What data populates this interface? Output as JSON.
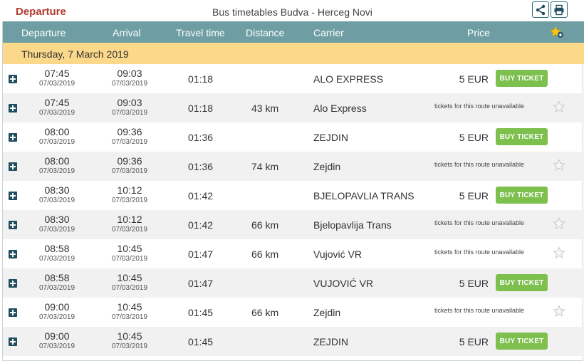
{
  "header": {
    "left_title": "Departure",
    "center_title": "Bus timetables Budva - Herceg Novi"
  },
  "columns": {
    "departure": "Departure",
    "arrival": "Arrival",
    "travel_time": "Travel time",
    "distance": "Distance",
    "carrier": "Carrier",
    "price": "Price"
  },
  "date_label": "Thursday, 7 March 2019",
  "buy_label": "BUY TICKET",
  "unavailable_label": "tickets for this route unavailable",
  "colors": {
    "header_bg": "#6e9ea3",
    "date_bg": "#fbd88a",
    "buy_bg": "#7dc04e",
    "title_red": "#b03a2e"
  },
  "rows": [
    {
      "dep": "07:45",
      "dep_date": "07/03/2019",
      "arr": "09:03",
      "arr_date": "07/03/2019",
      "travel": "01:18",
      "distance": "",
      "carrier": "ALO EXPRESS",
      "price": "5 EUR",
      "bookable": true
    },
    {
      "dep": "07:45",
      "dep_date": "07/03/2019",
      "arr": "09:03",
      "arr_date": "07/03/2019",
      "travel": "01:18",
      "distance": "43 km",
      "carrier": "Alo Express",
      "price": "",
      "bookable": false
    },
    {
      "dep": "08:00",
      "dep_date": "07/03/2019",
      "arr": "09:36",
      "arr_date": "07/03/2019",
      "travel": "01:36",
      "distance": "",
      "carrier": "ZEJDIN",
      "price": "5 EUR",
      "bookable": true
    },
    {
      "dep": "08:00",
      "dep_date": "07/03/2019",
      "arr": "09:36",
      "arr_date": "07/03/2019",
      "travel": "01:36",
      "distance": "74 km",
      "carrier": "Zejdin",
      "price": "",
      "bookable": false
    },
    {
      "dep": "08:30",
      "dep_date": "07/03/2019",
      "arr": "10:12",
      "arr_date": "07/03/2019",
      "travel": "01:42",
      "distance": "",
      "carrier": "BJELOPAVLIA TRANS",
      "price": "5 EUR",
      "bookable": true
    },
    {
      "dep": "08:30",
      "dep_date": "07/03/2019",
      "arr": "10:12",
      "arr_date": "07/03/2019",
      "travel": "01:42",
      "distance": "66 km",
      "carrier": "Bjelopavlija Trans",
      "price": "",
      "bookable": false
    },
    {
      "dep": "08:58",
      "dep_date": "07/03/2019",
      "arr": "10:45",
      "arr_date": "07/03/2019",
      "travel": "01:47",
      "distance": "66 km",
      "carrier": "Vujović VR",
      "price": "",
      "bookable": false
    },
    {
      "dep": "08:58",
      "dep_date": "07/03/2019",
      "arr": "10:45",
      "arr_date": "07/03/2019",
      "travel": "01:47",
      "distance": "",
      "carrier": "VUJOVIĆ VR",
      "price": "5 EUR",
      "bookable": true
    },
    {
      "dep": "09:00",
      "dep_date": "07/03/2019",
      "arr": "10:45",
      "arr_date": "07/03/2019",
      "travel": "01:45",
      "distance": "66 km",
      "carrier": "Zejdin",
      "price": "",
      "bookable": false
    },
    {
      "dep": "09:00",
      "dep_date": "07/03/2019",
      "arr": "10:45",
      "arr_date": "07/03/2019",
      "travel": "01:45",
      "distance": "",
      "carrier": "ZEJDIN",
      "price": "5 EUR",
      "bookable": true
    }
  ]
}
